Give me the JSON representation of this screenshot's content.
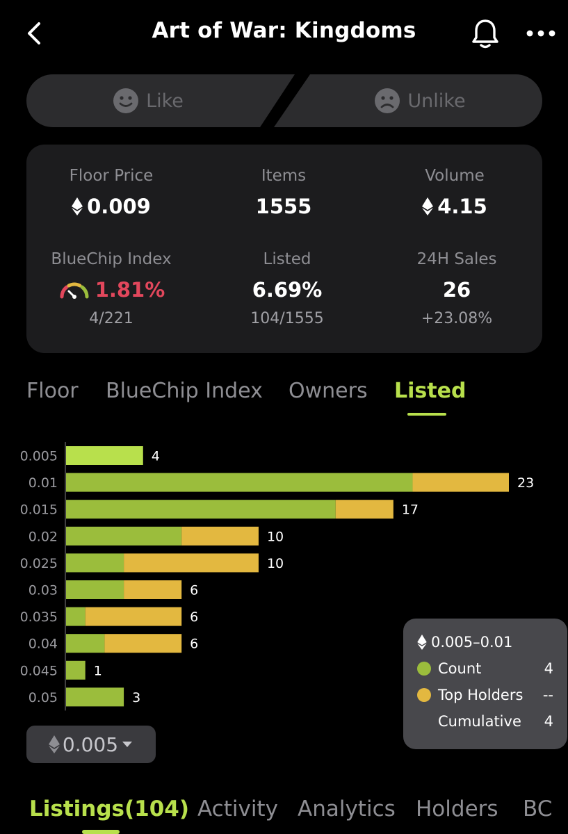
{
  "header": {
    "title": "Art of War: Kingdoms"
  },
  "reactions": {
    "like_label": "Like",
    "unlike_label": "Unlike"
  },
  "stats": {
    "floor_price": {
      "label": "Floor Price",
      "value": "0.009"
    },
    "items": {
      "label": "Items",
      "value": "1555"
    },
    "volume": {
      "label": "Volume",
      "value": "4.15"
    },
    "bluechip": {
      "label": "BlueChip Index",
      "value": "1.81%",
      "sub": "4/221"
    },
    "listed": {
      "label": "Listed",
      "value": "6.69%",
      "sub": "104/1555"
    },
    "sales_24h": {
      "label": "24H Sales",
      "value": "26",
      "sub": "+23.08%"
    }
  },
  "chart_tabs": [
    "Floor",
    "BlueChip Index",
    "Owners",
    "Listed"
  ],
  "active_chart_tab": "Listed",
  "chart_data": {
    "type": "bar",
    "orientation": "horizontal",
    "stacked": true,
    "categories": [
      "0.005",
      "0.01",
      "0.015",
      "0.02",
      "0.025",
      "0.03",
      "0.035",
      "0.04",
      "0.045",
      "0.05"
    ],
    "totals": [
      4,
      23,
      17,
      10,
      10,
      6,
      6,
      6,
      1,
      3
    ],
    "series": [
      {
        "name": "Count",
        "color": "#9bbd3c",
        "values": [
          4,
          18,
          14,
          6,
          3,
          3,
          1,
          2,
          1,
          3
        ]
      },
      {
        "name": "Top Holders",
        "color": "#e3b840",
        "values": [
          0,
          5,
          3,
          4,
          7,
          3,
          5,
          4,
          0,
          0
        ]
      }
    ],
    "highlight_color": "#b8e04c",
    "highlighted_index": 0,
    "xlim": [
      0,
      23
    ],
    "grid": false,
    "legend_position": "bottom-right"
  },
  "tooltip": {
    "range": "0.005–0.01",
    "rows": [
      {
        "name": "Count",
        "value": "4",
        "color": "#9bbd3c"
      },
      {
        "name": "Top Holders",
        "value": "--",
        "color": "#e3b840"
      },
      {
        "name": "Cumulative",
        "value": "4",
        "color": ""
      }
    ]
  },
  "step_select": {
    "value": "0.005"
  },
  "bottom_tabs": [
    "Listings(104)",
    "Activity",
    "Analytics",
    "Holders",
    "BC"
  ],
  "active_bottom_tab": "Listings(104)",
  "colors": {
    "accent": "#b8e04c",
    "card": "#1c1c1e",
    "negative": "#e2475c"
  }
}
